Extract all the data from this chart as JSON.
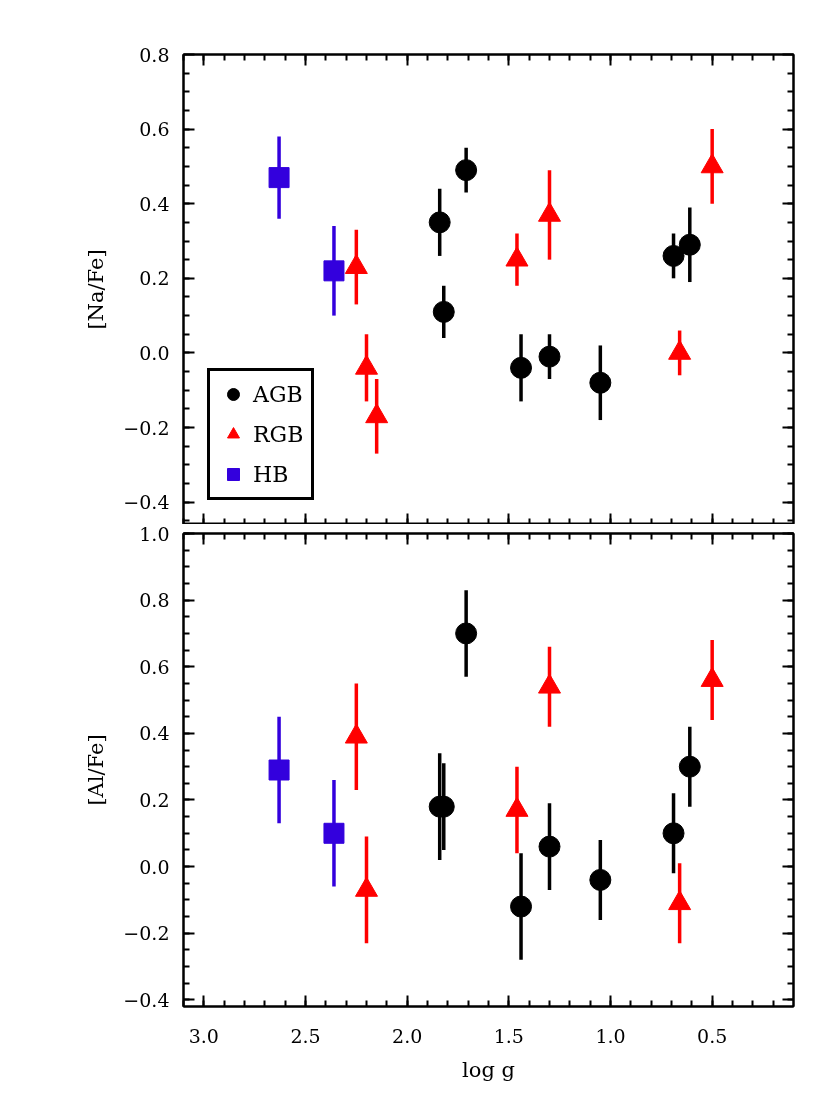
{
  "chart_data": [
    {
      "type": "scatter",
      "ylabel": "[Na/Fe]",
      "xlim": [
        3.1,
        0.1
      ],
      "xticks": [
        3,
        2.5,
        2,
        1.5,
        1,
        0.5
      ],
      "ylim": [
        -0.46,
        0.8
      ],
      "yticks": [
        {
          "value": -0.4,
          "label": "−0.4"
        },
        {
          "value": -0.2,
          "label": "−0.2"
        },
        {
          "value": 0,
          "label": "0.0"
        },
        0.2,
        0.4,
        0.6,
        0.8
      ],
      "grid": false,
      "legend": "bottom left",
      "tick_labels": "y",
      "series": [
        {
          "name": "AGB",
          "color": "#000000",
          "marker": "circle",
          "x": [
            1.84,
            1.71,
            1.82,
            1.44,
            1.3,
            1.05,
            0.69,
            0.61
          ],
          "values": [
            0.35,
            0.49,
            0.11,
            -0.04,
            -0.01,
            -0.08,
            0.26,
            0.29
          ],
          "errors": [
            0.09,
            0.06,
            0.07,
            0.09,
            0.06,
            0.1,
            0.06,
            0.1
          ]
        },
        {
          "name": "RGB",
          "color": "#ff0000",
          "marker": "triangle",
          "x": [
            2.25,
            2.2,
            2.15,
            1.46,
            1.3,
            0.66,
            0.5
          ],
          "values": [
            0.23,
            -0.04,
            -0.17,
            0.25,
            0.37,
            0.0,
            0.5
          ],
          "errors": [
            0.1,
            0.09,
            0.1,
            0.07,
            0.12,
            0.06,
            0.1
          ]
        },
        {
          "name": "HB",
          "color": "#3300dd",
          "marker": "square",
          "x": [
            2.63,
            2.36
          ],
          "values": [
            0.47,
            0.22
          ],
          "errors": [
            0.11,
            0.12
          ]
        }
      ]
    },
    {
      "type": "scatter",
      "ylabel": "[Al/Fe]",
      "xlabel": "log g",
      "xlim": [
        3.1,
        0.1
      ],
      "xticks": [
        {
          "value": 3,
          "label": "3.0"
        },
        2.5,
        {
          "value": 2,
          "label": "2.0"
        },
        1.5,
        {
          "value": 1,
          "label": "1.0"
        },
        0.5
      ],
      "ylim": [
        -0.42,
        1.0
      ],
      "yticks": [
        {
          "value": -0.4,
          "label": "−0.4"
        },
        {
          "value": -0.2,
          "label": "−0.2"
        },
        {
          "value": 0,
          "label": "0.0"
        },
        0.2,
        0.4,
        0.6,
        0.8,
        {
          "value": 1,
          "label": "1.0"
        }
      ],
      "grid": false,
      "series": [
        {
          "color": "#000000",
          "marker": "circle",
          "x": [
            1.84,
            1.82,
            1.71,
            1.44,
            1.3,
            1.05,
            0.69,
            0.61
          ],
          "values": [
            0.18,
            0.18,
            0.7,
            -0.12,
            0.06,
            -0.04,
            0.1,
            0.3
          ],
          "errors": [
            0.16,
            0.13,
            0.13,
            0.16,
            0.13,
            0.12,
            0.12,
            0.12
          ]
        },
        {
          "color": "#ff0000",
          "marker": "triangle",
          "x": [
            2.25,
            2.2,
            1.46,
            1.3,
            0.66,
            0.5
          ],
          "values": [
            0.39,
            -0.07,
            0.17,
            0.54,
            -0.11,
            0.56
          ],
          "errors": [
            0.16,
            0.16,
            0.13,
            0.12,
            0.12,
            0.12
          ]
        },
        {
          "color": "#3300dd",
          "marker": "square",
          "x": [
            2.63,
            2.36
          ],
          "values": [
            0.29,
            0.1
          ],
          "errors": [
            0.16,
            0.16
          ]
        }
      ]
    }
  ]
}
